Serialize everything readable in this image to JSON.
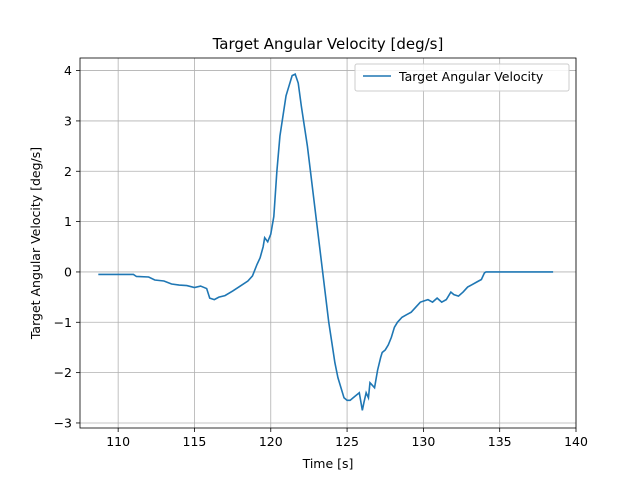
{
  "chart_data": {
    "type": "line",
    "title": "Target Angular Velocity [deg/s]",
    "xlabel": "Time [s]",
    "ylabel": "Target Angular Velocity [deg/s]",
    "xlim": [
      107.5,
      140
    ],
    "ylim": [
      -3.1,
      4.25
    ],
    "xticks": [
      110,
      115,
      120,
      125,
      130,
      135,
      140
    ],
    "yticks": [
      -3,
      -2,
      -1,
      0,
      1,
      2,
      3,
      4
    ],
    "grid": true,
    "legend_position": "top-right",
    "series": [
      {
        "name": "Target Angular Velocity",
        "color": "#1f77b4",
        "x": [
          108.7,
          111.0,
          111.2,
          112.0,
          112.4,
          113.0,
          113.5,
          114.0,
          114.5,
          115.0,
          115.4,
          115.8,
          116.0,
          116.3,
          116.6,
          117.0,
          117.5,
          118.0,
          118.5,
          118.8,
          119.1,
          119.3,
          119.5,
          119.6,
          119.8,
          120.0,
          120.2,
          120.4,
          120.6,
          120.8,
          121.0,
          121.2,
          121.4,
          121.6,
          121.8,
          122.0,
          122.2,
          122.4,
          122.6,
          122.8,
          123.0,
          123.2,
          123.4,
          123.6,
          123.8,
          124.0,
          124.2,
          124.4,
          124.6,
          124.8,
          125.0,
          125.2,
          125.4,
          125.6,
          125.8,
          126.0,
          126.1,
          126.25,
          126.4,
          126.5,
          126.65,
          126.8,
          127.0,
          127.2,
          127.3,
          127.5,
          127.7,
          127.9,
          128.1,
          128.3,
          128.6,
          128.9,
          129.2,
          129.5,
          129.8,
          130.0,
          130.3,
          130.6,
          130.9,
          131.2,
          131.5,
          131.8,
          132.0,
          132.3,
          132.6,
          132.9,
          133.2,
          133.5,
          133.8,
          134.0,
          134.1,
          134.5,
          136.0,
          138.5
        ],
        "y": [
          -0.05,
          -0.05,
          -0.09,
          -0.1,
          -0.16,
          -0.18,
          -0.24,
          -0.26,
          -0.27,
          -0.31,
          -0.28,
          -0.33,
          -0.52,
          -0.55,
          -0.5,
          -0.47,
          -0.38,
          -0.28,
          -0.18,
          -0.08,
          0.15,
          0.28,
          0.5,
          0.68,
          0.6,
          0.75,
          1.1,
          2.0,
          2.7,
          3.1,
          3.5,
          3.7,
          3.9,
          3.93,
          3.75,
          3.3,
          2.9,
          2.5,
          2.0,
          1.5,
          1.0,
          0.5,
          0.0,
          -0.5,
          -1.0,
          -1.4,
          -1.8,
          -2.1,
          -2.3,
          -2.5,
          -2.55,
          -2.55,
          -2.5,
          -2.45,
          -2.4,
          -2.75,
          -2.6,
          -2.4,
          -2.5,
          -2.2,
          -2.25,
          -2.3,
          -1.95,
          -1.7,
          -1.6,
          -1.55,
          -1.45,
          -1.3,
          -1.1,
          -1.0,
          -0.9,
          -0.85,
          -0.8,
          -0.7,
          -0.6,
          -0.58,
          -0.55,
          -0.6,
          -0.52,
          -0.6,
          -0.55,
          -0.4,
          -0.45,
          -0.48,
          -0.4,
          -0.3,
          -0.25,
          -0.2,
          -0.15,
          -0.02,
          0.0,
          0.0,
          0.0,
          0.0
        ]
      }
    ]
  }
}
